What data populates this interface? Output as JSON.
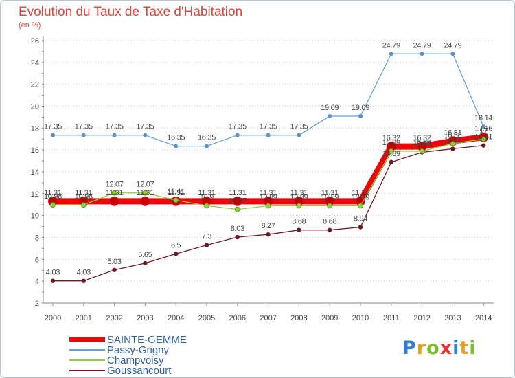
{
  "chart_data": {
    "type": "line",
    "title": "Evolution du Taux de Taxe d'Habitation",
    "ylabel": "(en %)",
    "xlabel": "",
    "categories": [
      "2000",
      "2001",
      "2002",
      "2003",
      "2004",
      "2005",
      "2006",
      "2007",
      "2008",
      "2009",
      "2010",
      "2011",
      "2012",
      "2013",
      "2014"
    ],
    "yticks": [
      "2",
      "4",
      "6",
      "8",
      "10",
      "12",
      "14",
      "16",
      "18",
      "20",
      "22",
      "24",
      "26"
    ],
    "ylim": [
      2,
      26
    ],
    "grid": "horizontal-dotted",
    "legend_position": "bottom-left",
    "series": [
      {
        "name": "SAINTE-GEMME",
        "color": "#e8070b",
        "values": [
          11.31,
          11.31,
          11.31,
          11.31,
          11.31,
          11.31,
          11.31,
          11.31,
          11.31,
          11.31,
          11.31,
          16.32,
          16.32,
          16.81,
          17.16
        ],
        "labels": [
          "11.31",
          "11.31",
          "11.31",
          "11.31",
          "11.31",
          "11.31",
          "11.31",
          "11.31",
          "11.31",
          "11.31",
          "11.31",
          "16.32",
          "16.32",
          "16.81",
          "17.16"
        ]
      },
      {
        "name": "Passy-Grigny",
        "color": "#6a9fd4",
        "values": [
          17.35,
          17.35,
          17.35,
          17.35,
          16.35,
          16.35,
          17.35,
          17.35,
          17.35,
          19.09,
          19.09,
          24.79,
          24.79,
          24.79,
          18.14
        ],
        "labels": [
          "17.35",
          "17.35",
          "17.35",
          "17.35",
          "16.35",
          "16.35",
          "17.35",
          "17.35",
          "17.35",
          "19.09",
          "19.09",
          "24.79",
          "24.79",
          "24.79",
          "18.14"
        ]
      },
      {
        "name": "Champvoisy",
        "color": "#8fd13a",
        "values": [
          10.98,
          10.98,
          12.07,
          12.07,
          11.41,
          10.9,
          10.57,
          10.89,
          10.89,
          10.89,
          10.89,
          15.89,
          15.89,
          16.58,
          17.0
        ],
        "labels": [
          "10.98",
          "10.98",
          "12.07",
          "12.07",
          "11.41",
          "10.9",
          "10.57",
          "10.89",
          "10.89",
          "10.89",
          "10.89",
          "15.89",
          "15.89",
          "16.58",
          "17"
        ]
      },
      {
        "name": "Goussancourt",
        "color": "#6b1c24",
        "values": [
          4.03,
          4.03,
          5.03,
          5.65,
          6.5,
          7.3,
          8.03,
          8.27,
          8.68,
          8.68,
          8.94,
          14.89,
          15.79,
          16.11,
          16.41
        ],
        "labels": [
          "4.03",
          "4.03",
          "5.03",
          "5.65",
          "6.5",
          "7.3",
          "8.03",
          "8.27",
          "8.68",
          "8.68",
          "8.94",
          "14.89",
          "15.79",
          "16.11",
          "16.41"
        ]
      }
    ]
  },
  "logo": {
    "letters": [
      "P",
      "r",
      "o",
      "x",
      "i",
      "t",
      "i"
    ],
    "colors": [
      "#2f7fd0",
      "#e8a020",
      "#7bbf2a",
      "#e23a2e",
      "#2f7fd0",
      "#e8a020",
      "#7bbf2a"
    ]
  }
}
